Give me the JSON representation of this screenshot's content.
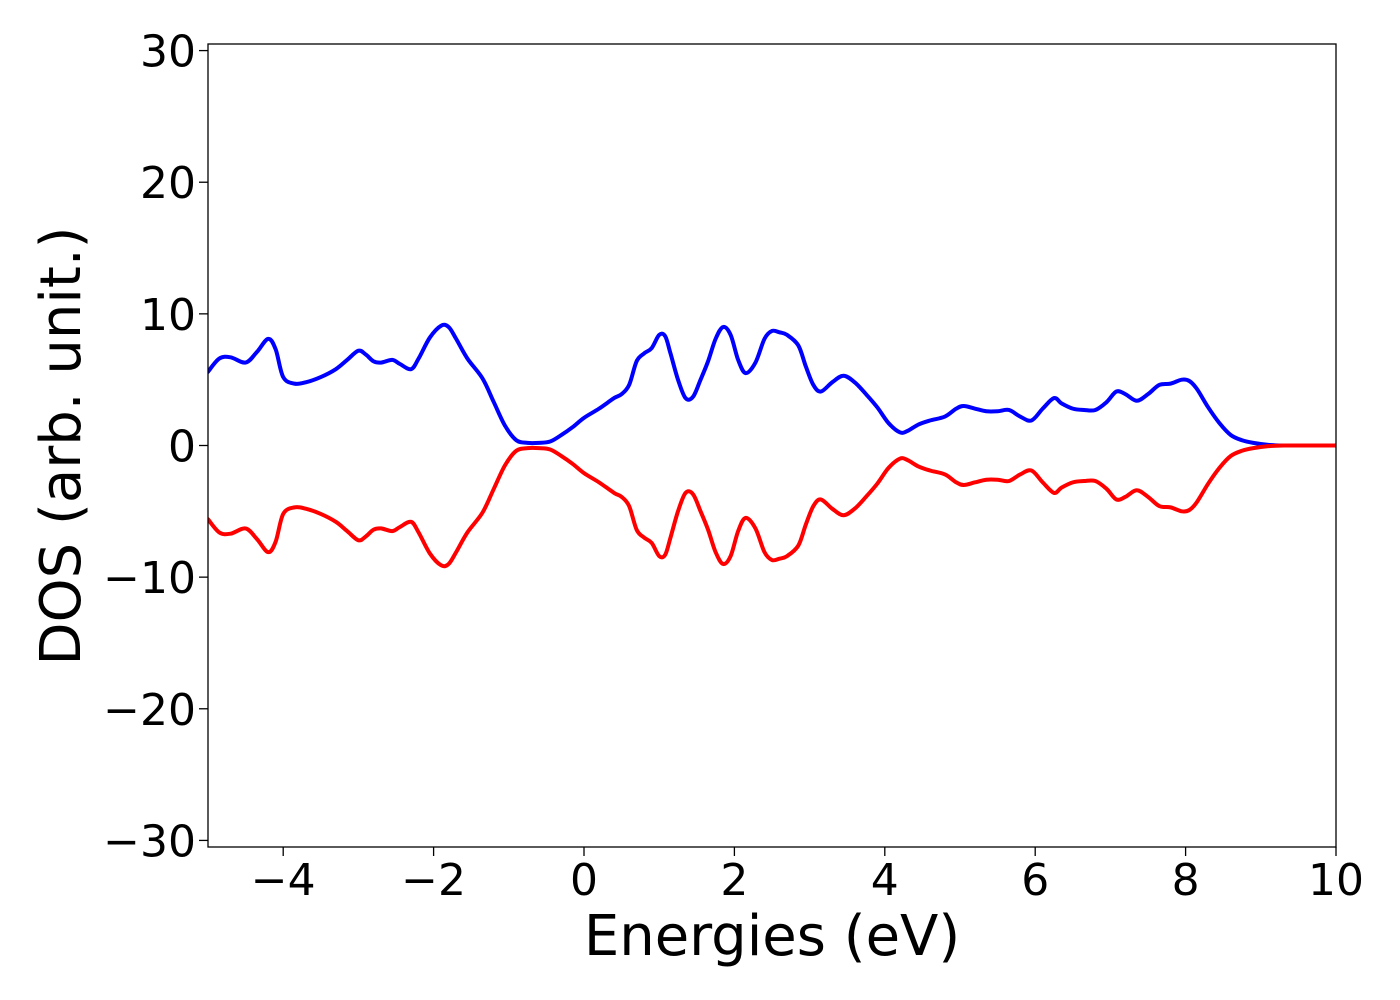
{
  "chart_data": {
    "type": "line",
    "xlabel": "Energies (eV)",
    "ylabel": "DOS (arb. unit.)",
    "xlim": [
      -5,
      10
    ],
    "ylim": [
      -30.5,
      30.5
    ],
    "xticks": [
      -4,
      -2,
      0,
      2,
      4,
      6,
      8,
      10
    ],
    "xtick_labels": [
      "−4",
      "−2",
      "0",
      "2",
      "4",
      "6",
      "8",
      "10"
    ],
    "yticks": [
      -30,
      -20,
      -10,
      0,
      10,
      20,
      30
    ],
    "ytick_labels": [
      "−30",
      "−20",
      "−10",
      "0",
      "10",
      "20",
      "30"
    ],
    "grid": false,
    "series": [
      {
        "color": "#0000ff",
        "x": [
          -5.0,
          -4.85,
          -4.7,
          -4.5,
          -4.35,
          -4.2,
          -4.1,
          -4.0,
          -3.85,
          -3.7,
          -3.5,
          -3.3,
          -3.15,
          -3.0,
          -2.9,
          -2.8,
          -2.7,
          -2.55,
          -2.45,
          -2.3,
          -2.2,
          -2.05,
          -1.9,
          -1.8,
          -1.7,
          -1.55,
          -1.35,
          -1.2,
          -1.05,
          -0.9,
          -0.75,
          -0.6,
          -0.45,
          -0.3,
          -0.15,
          0.0,
          0.2,
          0.4,
          0.5,
          0.6,
          0.7,
          0.8,
          0.9,
          1.0,
          1.08,
          1.15,
          1.25,
          1.35,
          1.45,
          1.55,
          1.65,
          1.75,
          1.85,
          1.95,
          2.05,
          2.15,
          2.28,
          2.4,
          2.5,
          2.6,
          2.7,
          2.85,
          2.95,
          3.05,
          3.15,
          3.3,
          3.45,
          3.6,
          3.75,
          3.9,
          4.05,
          4.2,
          4.3,
          4.45,
          4.6,
          4.8,
          4.95,
          5.05,
          5.2,
          5.35,
          5.5,
          5.65,
          5.8,
          5.95,
          6.1,
          6.25,
          6.35,
          6.5,
          6.65,
          6.8,
          6.95,
          7.08,
          7.2,
          7.35,
          7.5,
          7.65,
          7.8,
          7.95,
          8.05,
          8.15,
          8.3,
          8.45,
          8.6,
          8.75,
          8.9,
          9.1,
          9.3,
          9.6,
          10.0
        ],
        "y": [
          5.6,
          6.6,
          6.7,
          6.3,
          7.1,
          8.1,
          7.3,
          5.2,
          4.7,
          4.8,
          5.2,
          5.8,
          6.5,
          7.2,
          6.9,
          6.4,
          6.3,
          6.5,
          6.2,
          5.8,
          6.6,
          8.2,
          9.1,
          9.0,
          8.1,
          6.6,
          5.1,
          3.3,
          1.5,
          0.4,
          0.2,
          0.2,
          0.3,
          0.8,
          1.4,
          2.1,
          2.8,
          3.6,
          3.9,
          4.6,
          6.4,
          7.0,
          7.4,
          8.4,
          8.3,
          7.0,
          5.0,
          3.6,
          3.7,
          5.0,
          6.4,
          8.1,
          9.0,
          8.4,
          6.5,
          5.5,
          6.3,
          8.1,
          8.7,
          8.6,
          8.4,
          7.6,
          6.0,
          4.6,
          4.1,
          4.8,
          5.3,
          4.8,
          3.9,
          2.9,
          1.7,
          1.0,
          1.1,
          1.6,
          1.9,
          2.2,
          2.8,
          3.0,
          2.8,
          2.6,
          2.6,
          2.7,
          2.2,
          1.9,
          2.8,
          3.6,
          3.2,
          2.8,
          2.7,
          2.7,
          3.3,
          4.1,
          3.9,
          3.4,
          3.9,
          4.6,
          4.7,
          5.0,
          4.9,
          4.3,
          2.9,
          1.7,
          0.8,
          0.4,
          0.2,
          0.05,
          0.0,
          0.0,
          0.0
        ]
      },
      {
        "color": "#ff0000",
        "x": [
          -5.0,
          -4.85,
          -4.7,
          -4.5,
          -4.35,
          -4.2,
          -4.1,
          -4.0,
          -3.85,
          -3.7,
          -3.5,
          -3.3,
          -3.15,
          -3.0,
          -2.9,
          -2.8,
          -2.7,
          -2.55,
          -2.45,
          -2.3,
          -2.2,
          -2.05,
          -1.9,
          -1.8,
          -1.7,
          -1.55,
          -1.35,
          -1.2,
          -1.05,
          -0.9,
          -0.75,
          -0.6,
          -0.45,
          -0.3,
          -0.15,
          0.0,
          0.2,
          0.4,
          0.5,
          0.6,
          0.7,
          0.8,
          0.9,
          1.0,
          1.08,
          1.15,
          1.25,
          1.35,
          1.45,
          1.55,
          1.65,
          1.75,
          1.85,
          1.95,
          2.05,
          2.15,
          2.28,
          2.4,
          2.5,
          2.6,
          2.7,
          2.85,
          2.95,
          3.05,
          3.15,
          3.3,
          3.45,
          3.6,
          3.75,
          3.9,
          4.05,
          4.2,
          4.3,
          4.45,
          4.6,
          4.8,
          4.95,
          5.05,
          5.2,
          5.35,
          5.5,
          5.65,
          5.8,
          5.95,
          6.1,
          6.25,
          6.35,
          6.5,
          6.65,
          6.8,
          6.95,
          7.08,
          7.2,
          7.35,
          7.5,
          7.65,
          7.8,
          7.95,
          8.05,
          8.15,
          8.3,
          8.45,
          8.6,
          8.75,
          8.9,
          9.1,
          9.3,
          9.6,
          10.0
        ],
        "y": [
          -5.6,
          -6.6,
          -6.7,
          -6.3,
          -7.1,
          -8.1,
          -7.3,
          -5.2,
          -4.7,
          -4.8,
          -5.2,
          -5.8,
          -6.5,
          -7.2,
          -6.9,
          -6.4,
          -6.3,
          -6.5,
          -6.2,
          -5.8,
          -6.6,
          -8.2,
          -9.1,
          -9.0,
          -8.1,
          -6.6,
          -5.1,
          -3.3,
          -1.5,
          -0.4,
          -0.2,
          -0.2,
          -0.3,
          -0.8,
          -1.4,
          -2.1,
          -2.8,
          -3.6,
          -3.9,
          -4.6,
          -6.4,
          -7.0,
          -7.4,
          -8.4,
          -8.3,
          -7.0,
          -5.0,
          -3.6,
          -3.7,
          -5.0,
          -6.4,
          -8.1,
          -9.0,
          -8.4,
          -6.5,
          -5.5,
          -6.3,
          -8.1,
          -8.7,
          -8.6,
          -8.4,
          -7.6,
          -6.0,
          -4.6,
          -4.1,
          -4.8,
          -5.3,
          -4.8,
          -3.9,
          -2.9,
          -1.7,
          -1.0,
          -1.1,
          -1.6,
          -1.9,
          -2.2,
          -2.8,
          -3.0,
          -2.8,
          -2.6,
          -2.6,
          -2.7,
          -2.2,
          -1.9,
          -2.8,
          -3.6,
          -3.2,
          -2.8,
          -2.7,
          -2.7,
          -3.3,
          -4.1,
          -3.9,
          -3.4,
          -3.9,
          -4.6,
          -4.7,
          -5.0,
          -4.9,
          -4.3,
          -2.9,
          -1.7,
          -0.8,
          -0.4,
          -0.2,
          -0.05,
          0.0,
          0.0,
          0.0
        ]
      }
    ]
  }
}
